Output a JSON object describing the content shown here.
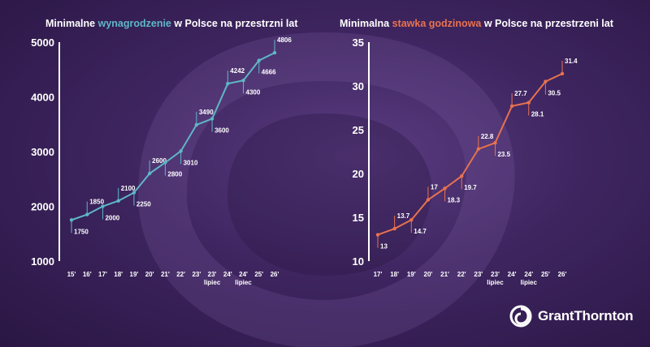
{
  "charts": [
    {
      "title_pre": "Minimalne ",
      "title_highlight": "wynagrodzenie",
      "title_post": " w Polsce na przestrzni lat",
      "accent": "#5fb7c6"
    },
    {
      "title_pre": "Minimalna ",
      "title_highlight": "stawka godzinowa",
      "title_post": " w Polsce na przestrzeni lat",
      "accent": "#e8724f"
    }
  ],
  "logo": {
    "text": "GrantThornton"
  },
  "chart_data": [
    {
      "type": "line",
      "title": "Minimalne wynagrodzenie w Polsce na przestrzni lat",
      "x": [
        "15'",
        "16'",
        "17'",
        "18'",
        "19'",
        "20'",
        "21'",
        "22'",
        "23'",
        "23'",
        "24'",
        "24'",
        "25'",
        "26'"
      ],
      "x_sublabels": [
        "",
        "",
        "",
        "",
        "",
        "",
        "",
        "",
        "",
        "lipiec",
        "",
        "lipiec",
        "",
        ""
      ],
      "values": [
        1750,
        1850,
        2000,
        2100,
        2250,
        2600,
        2800,
        3010,
        3490,
        3600,
        4242,
        4300,
        4666,
        4806
      ],
      "data_labels": [
        "1750",
        "1850",
        "2000",
        "2100",
        "2250",
        "2600",
        "2800",
        "3010",
        "3490",
        "3600",
        "4242",
        "4300",
        "4666",
        "4806"
      ],
      "label_side": [
        "below",
        "above",
        "below",
        "above",
        "below",
        "above",
        "below",
        "below",
        "above",
        "below",
        "above",
        "below",
        "below",
        "above"
      ],
      "yticks": [
        "1000",
        "2000",
        "3000",
        "4000",
        "5000"
      ],
      "ylim": [
        1000,
        5000
      ],
      "color": "#5fb7c6",
      "grid": false
    },
    {
      "type": "line",
      "title": "Minimalna stawka godzinowa w Polsce na przestrzeni lat",
      "x": [
        "17'",
        "18'",
        "19'",
        "20'",
        "21'",
        "22'",
        "23'",
        "23'",
        "24'",
        "24'",
        "25'",
        "26'"
      ],
      "x_sublabels": [
        "",
        "",
        "",
        "",
        "",
        "",
        "",
        "lipiec",
        "",
        "lipiec",
        "",
        ""
      ],
      "values": [
        13,
        13.7,
        14.7,
        17,
        18.3,
        19.7,
        22.8,
        23.5,
        27.7,
        28.1,
        30.5,
        31.4
      ],
      "data_labels": [
        "13",
        "13.7",
        "14.7",
        "17",
        "18.3",
        "19.7",
        "22.8",
        "23.5",
        "27.7",
        "28.1",
        "30.5",
        "31.4"
      ],
      "label_side": [
        "below",
        "above",
        "below",
        "above",
        "below",
        "below",
        "above",
        "below",
        "above",
        "below",
        "below",
        "above"
      ],
      "yticks": [
        "10",
        "15",
        "20",
        "25",
        "30",
        "35"
      ],
      "ylim": [
        10,
        35
      ],
      "color": "#e8724f",
      "grid": false
    }
  ]
}
